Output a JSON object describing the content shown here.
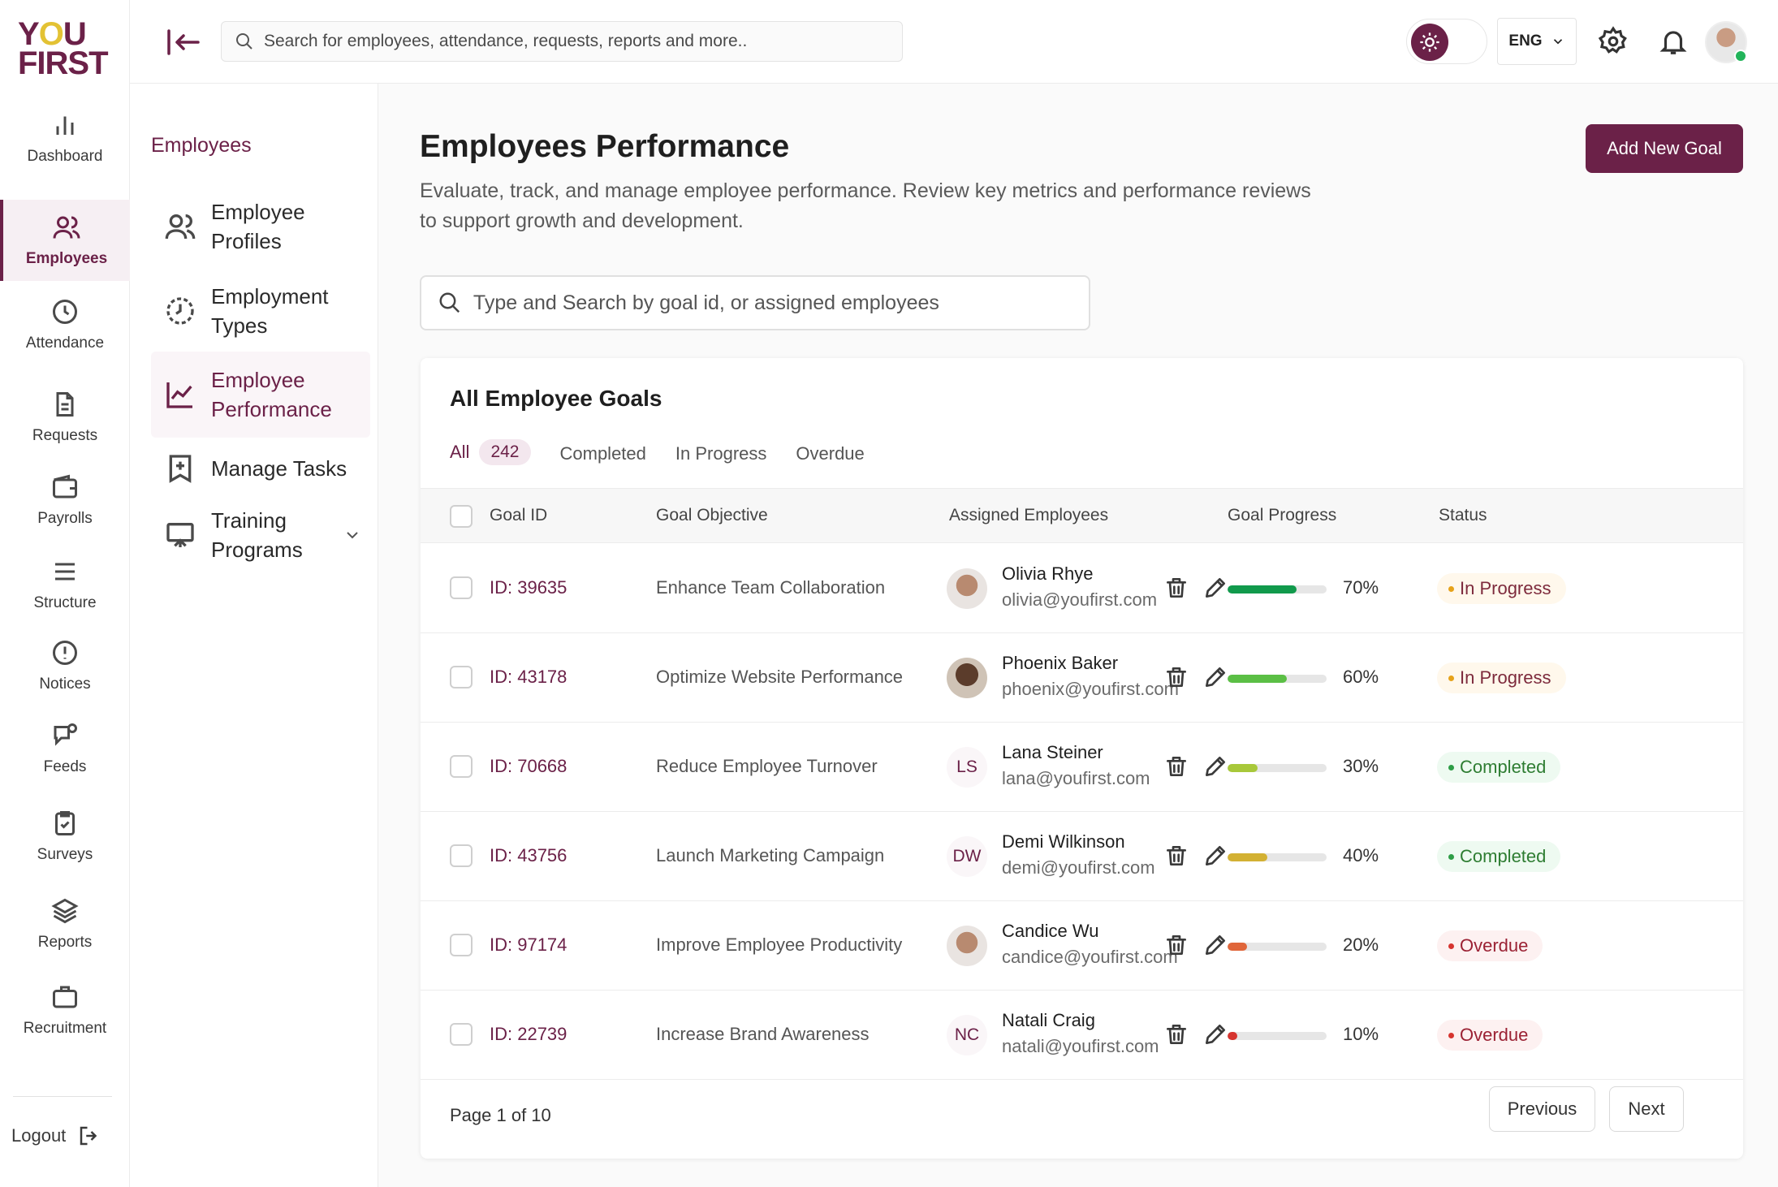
{
  "brand": {
    "logo_line1": "Y",
    "logo_o": "O",
    "logo_line1b": "U",
    "logo_line2": "FIRST"
  },
  "rail": [
    {
      "label": "Dashboard",
      "icon": "chart-bars-icon"
    },
    {
      "label": "Employees",
      "icon": "users-icon",
      "active": true
    },
    {
      "label": "Attendance",
      "icon": "clock-icon"
    },
    {
      "label": "Requests",
      "icon": "document-icon"
    },
    {
      "label": "Payrolls",
      "icon": "wallet-icon"
    },
    {
      "label": "Structure",
      "icon": "menu-lines-icon"
    },
    {
      "label": "Notices",
      "icon": "alert-circle-icon"
    },
    {
      "label": "Feeds",
      "icon": "chat-bubble-icon"
    },
    {
      "label": "Surveys",
      "icon": "clipboard-check-icon"
    },
    {
      "label": "Reports",
      "icon": "layers-icon"
    },
    {
      "label": "Recruitment",
      "icon": "briefcase-icon"
    }
  ],
  "logout_label": "Logout",
  "topbar": {
    "search_placeholder": "Search for employees, attendance, requests, reports and more..",
    "language": "ENG"
  },
  "subnav": {
    "title": "Employees",
    "items": [
      {
        "label": "Employee Profiles",
        "icon": "users-icon"
      },
      {
        "label": "Employment Types",
        "icon": "clock-history-icon"
      },
      {
        "label": "Employee Performance",
        "icon": "trend-chart-icon",
        "active": true
      },
      {
        "label": "Manage Tasks",
        "icon": "bookmark-plus-icon"
      },
      {
        "label": "Training Programs",
        "icon": "presentation-board-icon"
      }
    ]
  },
  "page": {
    "title": "Employees Performance",
    "description": "Evaluate, track, and manage employee performance. Review key metrics and performance reviews to support growth and development.",
    "add_button": "Add New Goal",
    "search_placeholder": "Type and Search by goal id, or assigned employees"
  },
  "goals": {
    "title": "All Employee Goals",
    "tabs": [
      {
        "label": "All",
        "count": "242",
        "active": true
      },
      {
        "label": "Completed"
      },
      {
        "label": "In Progress"
      },
      {
        "label": "Overdue"
      }
    ],
    "columns": [
      "Goal ID",
      "Goal Objective",
      "Assigned Employees",
      "Goal Progress",
      "Status"
    ],
    "rows": [
      {
        "id": "ID: 39635",
        "objective": "Enhance Team Collaboration",
        "name": "Olivia Rhye",
        "email": "olivia@youfirst.com",
        "avatar": "",
        "progress": 70,
        "progress_label": "70%",
        "bar_color": "#119a4c",
        "status": "In Progress",
        "status_kind": "progress"
      },
      {
        "id": "ID: 43178",
        "objective": "Optimize Website Performance",
        "name": "Phoenix Baker",
        "email": "phoenix@youfirst.com",
        "avatar": "",
        "progress": 60,
        "progress_label": "60%",
        "bar_color": "#5bbf45",
        "status": "In Progress",
        "status_kind": "progress"
      },
      {
        "id": "ID: 70668",
        "objective": "Reduce Employee Turnover",
        "name": "Lana Steiner",
        "email": "lana@youfirst.com",
        "avatar": "LS",
        "progress": 30,
        "progress_label": "30%",
        "bar_color": "#a8c83a",
        "status": "Completed",
        "status_kind": "completed"
      },
      {
        "id": "ID: 43756",
        "objective": "Launch Marketing Campaign",
        "name": "Demi Wilkinson",
        "email": "demi@youfirst.com",
        "avatar": "DW",
        "progress": 40,
        "progress_label": "40%",
        "bar_color": "#d3b133",
        "status": "Completed",
        "status_kind": "completed"
      },
      {
        "id": "ID: 97174",
        "objective": "Improve Employee Productivity",
        "name": "Candice Wu",
        "email": "candice@youfirst.com",
        "avatar": "",
        "progress": 20,
        "progress_label": "20%",
        "bar_color": "#e0663a",
        "status": "Overdue",
        "status_kind": "overdue"
      },
      {
        "id": "ID: 22739",
        "objective": "Increase Brand Awareness",
        "name": "Natali Craig",
        "email": "natali@youfirst.com",
        "avatar": "NC",
        "progress": 10,
        "progress_label": "10%",
        "bar_color": "#d6342f",
        "status": "Overdue",
        "status_kind": "overdue"
      }
    ],
    "pager": {
      "text": "Page 1 of 10",
      "previous": "Previous",
      "next": "Next"
    }
  },
  "colors": {
    "brand": "#6b2148",
    "brand_light": "#f6eff3",
    "accent_yellow": "#e3c234"
  }
}
